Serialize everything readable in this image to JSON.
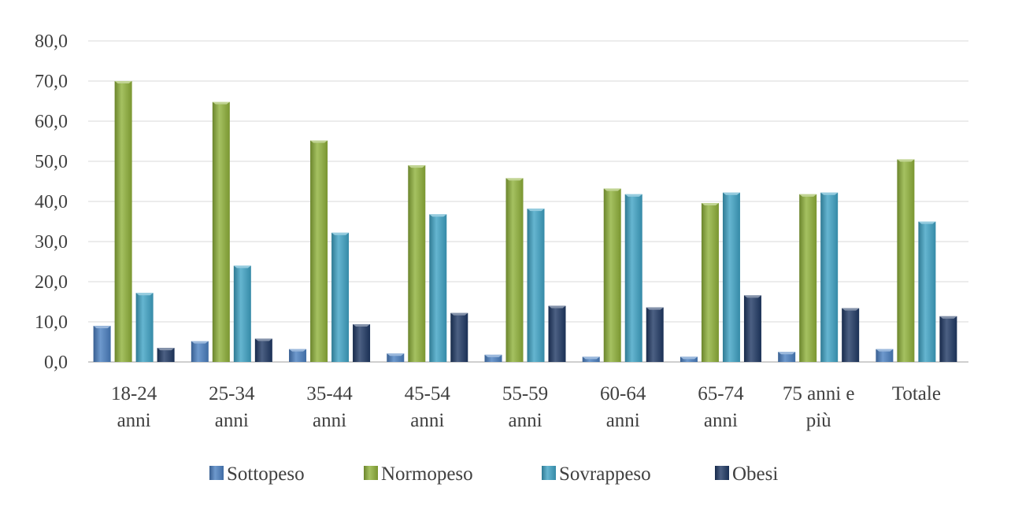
{
  "chart_data": {
    "type": "bar",
    "title": "",
    "xlabel": "",
    "ylabel": "",
    "ylim": [
      0,
      80
    ],
    "yticks": [
      "0,0",
      "10,0",
      "20,0",
      "30,0",
      "40,0",
      "50,0",
      "60,0",
      "70,0",
      "80,0"
    ],
    "grid": true,
    "legend_position": "bottom",
    "categories": [
      [
        "18-24",
        "anni"
      ],
      [
        "25-34",
        "anni"
      ],
      [
        "35-44",
        "anni"
      ],
      [
        "45-54",
        "anni"
      ],
      [
        "55-59",
        "anni"
      ],
      [
        "60-64",
        "anni"
      ],
      [
        "65-74",
        "anni"
      ],
      [
        "75 anni e",
        "più"
      ],
      [
        "Totale"
      ]
    ],
    "series": [
      {
        "name": "Sottopeso",
        "color": "#4a7fc1",
        "values": [
          9.0,
          5.2,
          3.2,
          2.1,
          1.8,
          1.3,
          1.3,
          2.5,
          3.2
        ]
      },
      {
        "name": "Normopeso",
        "color": "#8fb13a",
        "values": [
          70.0,
          64.8,
          55.2,
          49.0,
          45.8,
          43.2,
          39.6,
          41.8,
          50.5
        ]
      },
      {
        "name": "Sovrappeso",
        "color": "#3ea2c4",
        "values": [
          17.2,
          24.0,
          32.2,
          36.8,
          38.2,
          41.8,
          42.2,
          42.2,
          35.0
        ]
      },
      {
        "name": "Obesi",
        "color": "#1f3864",
        "values": [
          3.5,
          5.8,
          9.4,
          12.2,
          14.0,
          13.6,
          16.6,
          13.4,
          11.4
        ]
      }
    ]
  }
}
